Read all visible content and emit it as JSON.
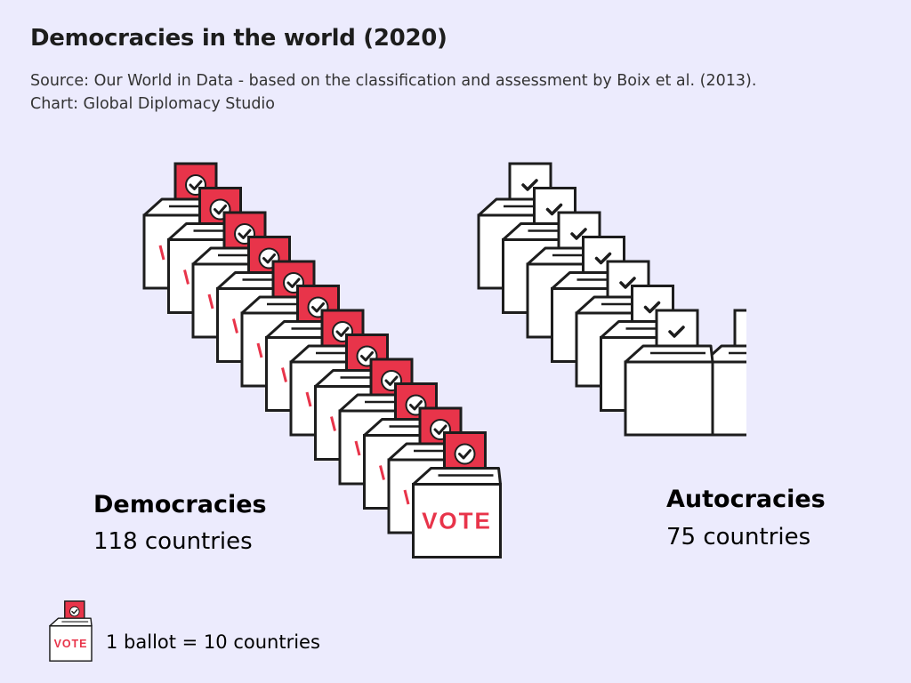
{
  "header": {
    "title": "Democracies in the world (2020)",
    "source": "Source: Our World in Data - based on the classification and assessment by Boix et al. (2013).",
    "credit": "Chart: Global Diplomacy Studio"
  },
  "chart_data": {
    "type": "pictogram",
    "unit_value": 10,
    "unit_label": "1 ballot = 10 countries",
    "ballot_text": "VOTE",
    "categories": [
      "Democracies",
      "Autocracies"
    ],
    "series": [
      {
        "name": "Democracies",
        "value": 118,
        "count_label": "118 countries",
        "ballots": 12,
        "style": "filled",
        "color": "#e8344a"
      },
      {
        "name": "Autocracies",
        "value": 75,
        "count_label": "75 countries",
        "ballots": 7.5,
        "style": "outline",
        "color": "#ffffff"
      }
    ]
  },
  "colors": {
    "background": "#ecebfd",
    "accent": "#e8344a",
    "outline": "#1d1d1d"
  }
}
